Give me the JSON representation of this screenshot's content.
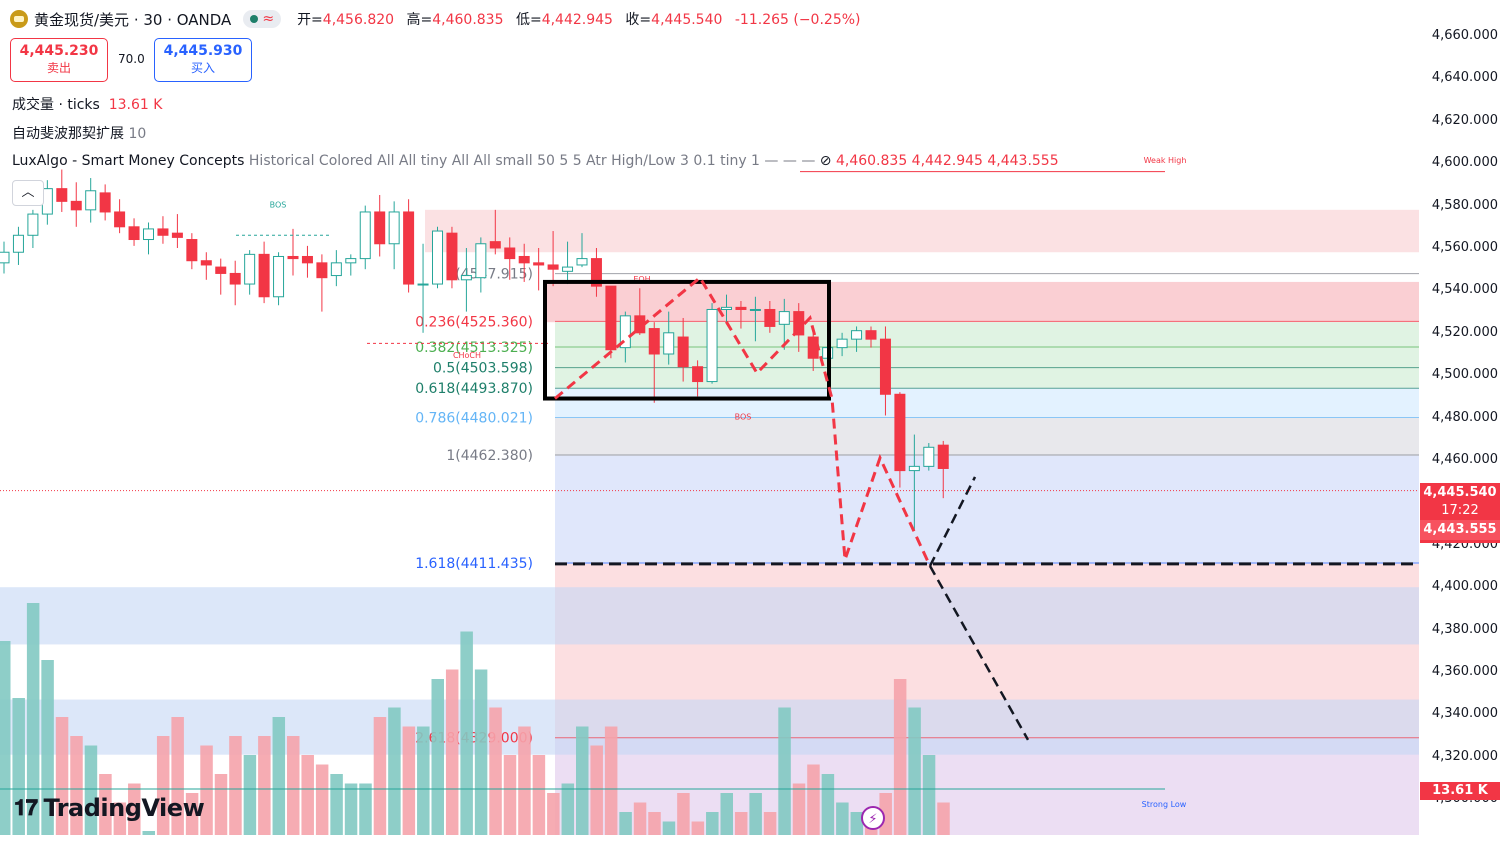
{
  "header": {
    "symbol": "黄金现货/美元 · 30 · OANDA",
    "open_label": "开=",
    "open": "4,456.820",
    "high_label": "高=",
    "high": "4,460.835",
    "low_label": "低=",
    "low": "4,442.945",
    "close_label": "收=",
    "close": "4,445.540",
    "change": "-11.265 (−0.25%)"
  },
  "trade": {
    "sell_price": "4,445.230",
    "sell_label": "卖出",
    "buy_price": "4,445.930",
    "buy_label": "买入",
    "spread": "70.0"
  },
  "indicators": {
    "volume_name": "成交量 · ticks",
    "volume_value": "13.61 K",
    "fib_name": "自动斐波那契扩展",
    "fib_value": "10",
    "smc_name": "LuxAlgo - Smart Money Concepts",
    "smc_params": "Historical Colored All All tiny All All small 50 5 5 Atr High/Low 3 0.1 tiny 1",
    "smc_values": "4,460.835  4,442.945  4,443.555"
  },
  "collapse_icon": "chevron-up-icon",
  "price_axis": [
    "4,660.000",
    "4,640.000",
    "4,620.000",
    "4,600.000",
    "4,580.000",
    "4,560.000",
    "4,540.000",
    "4,520.000",
    "4,500.000",
    "4,480.000",
    "4,460.000",
    "4,420.000",
    "4,400.000",
    "4,380.000",
    "4,360.000",
    "4,340.000",
    "4,320.000",
    "4,300.000"
  ],
  "tags": {
    "last_price": "4,445.540",
    "countdown": "17:22",
    "smc_price": "4,443.555",
    "volume": "13.61 K"
  },
  "brand": "TradingView",
  "colors": {
    "bull": "#26a69a",
    "bear": "#f23645",
    "fib": "#2962ff"
  },
  "chart_data": {
    "type": "candlestick",
    "ylim": [
      4290,
      4670
    ],
    "fib_levels": [
      {
        "label": "0(4547.915)",
        "value": 4547.915
      },
      {
        "label": "0.236(4525.360)",
        "value": 4525.36
      },
      {
        "label": "0.382(4513.325)",
        "value": 4513.325
      },
      {
        "label": "0.5(4503.598)",
        "value": 4503.598
      },
      {
        "label": "0.618(4493.870)",
        "value": 4493.87
      },
      {
        "label": "0.786(4480.021)",
        "value": 4480.021
      },
      {
        "label": "1(4462.380)",
        "value": 4462.38
      },
      {
        "label": "1.618(4411.435)",
        "value": 4411.435
      },
      {
        "label": "2.618(4329.000)",
        "value": 4329.0
      }
    ],
    "smc_labels": [
      "BOS",
      "EQH",
      "CHoCH",
      "BOS",
      "Weak High",
      "Strong Low"
    ],
    "candles": [
      [
        4553,
        4563,
        4548,
        4558
      ],
      [
        4558,
        4570,
        4552,
        4566
      ],
      [
        4566,
        4578,
        4560,
        4576
      ],
      [
        4576,
        4592,
        4571,
        4588
      ],
      [
        4588,
        4597,
        4577,
        4582
      ],
      [
        4582,
        4591,
        4570,
        4578
      ],
      [
        4578,
        4593,
        4572,
        4587
      ],
      [
        4586,
        4590,
        4573,
        4577
      ],
      [
        4577,
        4583,
        4567,
        4570
      ],
      [
        4570,
        4574,
        4561,
        4564
      ],
      [
        4564,
        4572,
        4557,
        4569
      ],
      [
        4569,
        4575,
        4562,
        4566
      ],
      [
        4567,
        4576,
        4560,
        4565
      ],
      [
        4564,
        4567,
        4550,
        4554
      ],
      [
        4554,
        4558,
        4545,
        4552
      ],
      [
        4551,
        4555,
        4538,
        4548
      ],
      [
        4548,
        4554,
        4533,
        4543
      ],
      [
        4543,
        4559,
        4538,
        4557
      ],
      [
        4557,
        4563,
        4534,
        4537
      ],
      [
        4537,
        4558,
        4533,
        4556
      ],
      [
        4556,
        4569,
        4547,
        4555
      ],
      [
        4556,
        4561,
        4546,
        4553
      ],
      [
        4553,
        4557,
        4530,
        4546
      ],
      [
        4547,
        4559,
        4542,
        4553
      ],
      [
        4553,
        4557,
        4547,
        4555
      ],
      [
        4555,
        4580,
        4550,
        4577
      ],
      [
        4577,
        4585,
        4556,
        4562
      ],
      [
        4562,
        4582,
        4550,
        4577
      ],
      [
        4577,
        4583,
        4539,
        4543
      ],
      [
        4543,
        4562,
        4520,
        4543
      ],
      [
        4543,
        4570,
        4541,
        4568
      ],
      [
        4567,
        4570,
        4541,
        4545
      ],
      [
        4545,
        4560,
        4530,
        4547
      ],
      [
        4546,
        4565,
        4539,
        4562
      ],
      [
        4563,
        4578,
        4557,
        4560
      ],
      [
        4560,
        4565,
        4545,
        4555
      ],
      [
        4556,
        4562,
        4544,
        4553
      ],
      [
        4553,
        4560,
        4540,
        4552
      ],
      [
        4552,
        4568,
        4542,
        4550
      ],
      [
        4549,
        4563,
        4543,
        4551
      ],
      [
        4552,
        4567,
        4551,
        4555
      ],
      [
        4555,
        4560,
        4537,
        4542
      ],
      [
        4542,
        4542,
        4508,
        4512
      ],
      [
        4513,
        4530,
        4506,
        4528
      ],
      [
        4528,
        4541,
        4519,
        4520
      ],
      [
        4522,
        4525,
        4487,
        4510
      ],
      [
        4510,
        4530,
        4505,
        4520
      ],
      [
        4518,
        4527,
        4497,
        4504
      ],
      [
        4504,
        4507,
        4490,
        4497
      ],
      [
        4497,
        4534,
        4496,
        4531
      ],
      [
        4531,
        4538,
        4524,
        4532
      ],
      [
        4532,
        4535,
        4522,
        4531
      ],
      [
        4531,
        4537,
        4516,
        4531
      ],
      [
        4531,
        4535,
        4520,
        4523
      ],
      [
        4524,
        4536,
        4512,
        4530
      ],
      [
        4530,
        4534,
        4511,
        4519
      ],
      [
        4518,
        4522,
        4502,
        4508
      ],
      [
        4508,
        4515,
        4498,
        4513
      ],
      [
        4513,
        4520,
        4509,
        4517
      ],
      [
        4517,
        4523,
        4511,
        4521
      ],
      [
        4521,
        4523,
        4513,
        4517
      ],
      [
        4517,
        4523,
        4481,
        4491
      ],
      [
        4491,
        4492,
        4447,
        4455
      ],
      [
        4455,
        4472,
        4427,
        4457
      ],
      [
        4457,
        4468,
        4455,
        4466
      ],
      [
        4467,
        4469,
        4442,
        4456
      ]
    ],
    "volume_max": 14
  }
}
